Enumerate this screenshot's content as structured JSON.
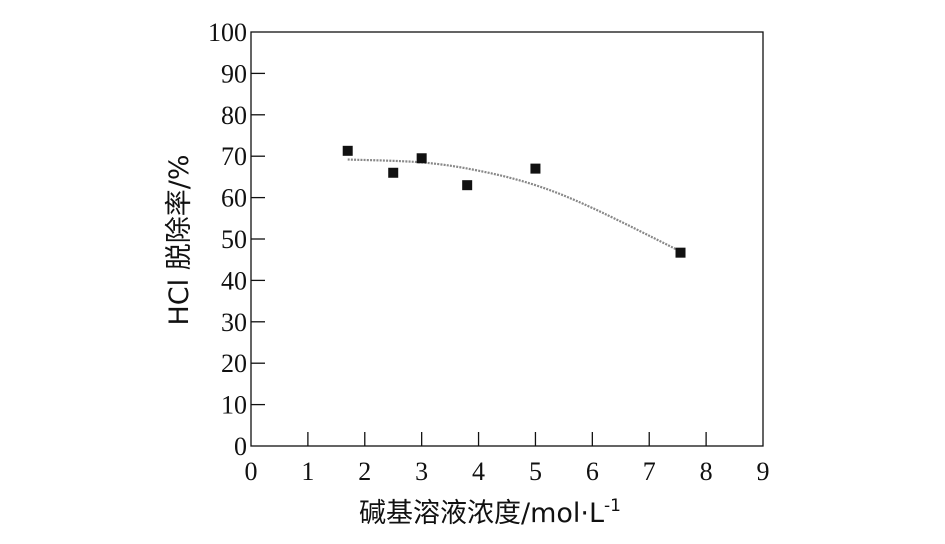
{
  "chart_data": {
    "type": "scatter",
    "title": "",
    "xlabel": "碱基溶液浓度/mol·L",
    "xlabel_sup": "-1",
    "ylabel": "HCl 脱除率/%",
    "xlim": [
      0,
      9
    ],
    "ylim": [
      0,
      100
    ],
    "x_ticks": [
      0,
      1,
      2,
      3,
      4,
      5,
      6,
      7,
      8,
      9
    ],
    "y_ticks": [
      0,
      10,
      20,
      30,
      40,
      50,
      60,
      70,
      80,
      90,
      100
    ],
    "grid": false,
    "legend": "none",
    "series": [
      {
        "points": [
          {
            "x": 1.7,
            "y": 71.3
          },
          {
            "x": 2.5,
            "y": 66.0
          },
          {
            "x": 3.0,
            "y": 69.5
          },
          {
            "x": 3.8,
            "y": 63.0
          },
          {
            "x": 5.0,
            "y": 67.0
          },
          {
            "x": 7.55,
            "y": 46.7
          }
        ]
      }
    ],
    "trendline": {
      "type": "quadratic-fit",
      "x_range": [
        1.7,
        7.55
      ],
      "points": [
        {
          "x": 1.7,
          "y": 69.2
        },
        {
          "x": 3.0,
          "y": 68.5
        },
        {
          "x": 4.0,
          "y": 66.5
        },
        {
          "x": 5.0,
          "y": 63.0
        },
        {
          "x": 6.0,
          "y": 57.5
        },
        {
          "x": 7.55,
          "y": 47.0
        }
      ]
    },
    "colors": {
      "points": "#111111",
      "trendline": "#888888",
      "axes": "#111111"
    }
  }
}
